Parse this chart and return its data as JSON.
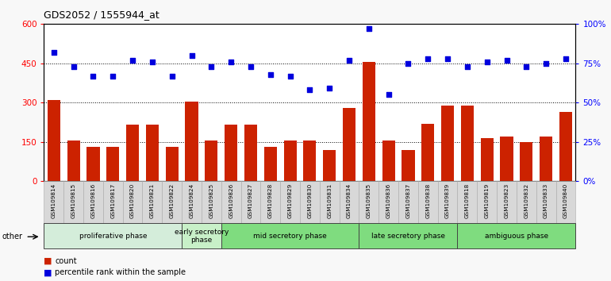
{
  "title": "GDS2052 / 1555944_at",
  "samples": [
    "GSM109814",
    "GSM109815",
    "GSM109816",
    "GSM109817",
    "GSM109820",
    "GSM109821",
    "GSM109822",
    "GSM109824",
    "GSM109825",
    "GSM109826",
    "GSM109827",
    "GSM109828",
    "GSM109829",
    "GSM109830",
    "GSM109831",
    "GSM109834",
    "GSM109835",
    "GSM109836",
    "GSM109837",
    "GSM109838",
    "GSM109839",
    "GSM109818",
    "GSM109819",
    "GSM109823",
    "GSM109832",
    "GSM109833",
    "GSM109840"
  ],
  "counts": [
    310,
    155,
    130,
    130,
    215,
    215,
    130,
    305,
    155,
    215,
    215,
    130,
    155,
    155,
    120,
    280,
    455,
    155,
    120,
    220,
    290,
    290,
    165,
    170,
    150,
    170,
    265
  ],
  "percentile_ranks": [
    82,
    73,
    67,
    67,
    77,
    76,
    67,
    80,
    73,
    76,
    73,
    68,
    67,
    58,
    59,
    77,
    97,
    55,
    75,
    78,
    78,
    73,
    76,
    77,
    73,
    75,
    78
  ],
  "phase_groups": [
    {
      "label": "proliferative phase",
      "start": 0,
      "end": 7,
      "color": "#d4edda"
    },
    {
      "label": "early secretory\nphase",
      "start": 7,
      "end": 9,
      "color": "#c8f0c8"
    },
    {
      "label": "mid secretory phase",
      "start": 9,
      "end": 16,
      "color": "#7fdc7f"
    },
    {
      "label": "late secretory phase",
      "start": 16,
      "end": 21,
      "color": "#7fdc7f"
    },
    {
      "label": "ambiguous phase",
      "start": 21,
      "end": 27,
      "color": "#7fdc7f"
    }
  ],
  "bar_color": "#cc2200",
  "dot_color": "#0000dd",
  "tick_bg": "#d8d8d8",
  "fig_bg": "#f8f8f8"
}
